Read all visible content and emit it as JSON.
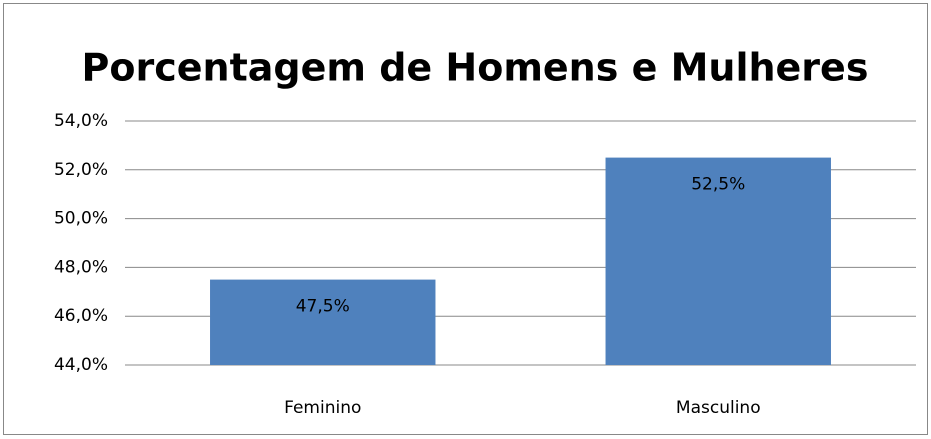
{
  "chart_data": {
    "type": "bar",
    "title": "Porcentagem de Homens e Mulheres",
    "categories": [
      "Feminino",
      "Masculino"
    ],
    "values": [
      47.5,
      52.5
    ],
    "value_labels": [
      "47,5%",
      "52,5%"
    ],
    "color": "#4f81bd",
    "ylim": [
      44,
      54
    ],
    "yticks": [
      {
        "value": 44,
        "label": "44,0%"
      },
      {
        "value": 46,
        "label": "46,0%"
      },
      {
        "value": 48,
        "label": "48,0%"
      },
      {
        "value": 50,
        "label": "50,0%"
      },
      {
        "value": 52,
        "label": "52,0%"
      },
      {
        "value": 54,
        "label": "54,0%"
      }
    ],
    "grid": true
  }
}
